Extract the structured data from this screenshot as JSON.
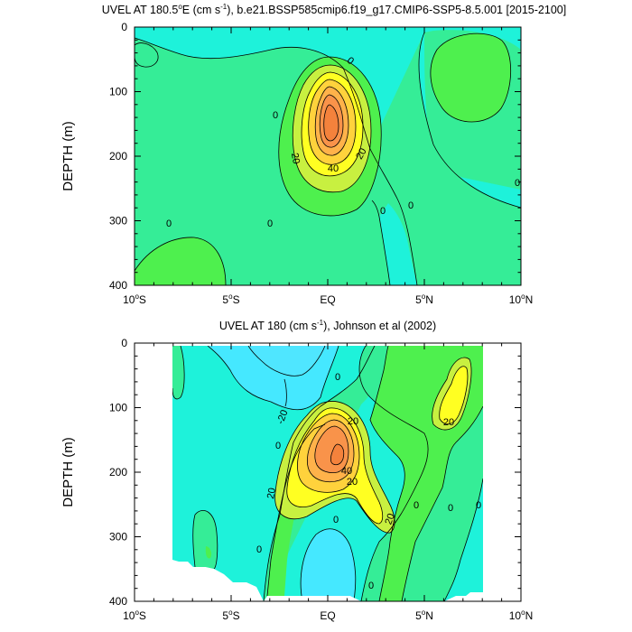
{
  "colors": {
    "lt_m20": "#4fe6ff",
    "m20_m10": "#45e8ff",
    "m10_0": "#1ef2da",
    "c0_10": "#35ed97",
    "c10_20": "#4ef04e",
    "c20_30": "#c8f040",
    "c30_40": "#ffff22",
    "c40_50": "#ffd23c",
    "c50_60": "#ffb24a",
    "c60_70": "#f9934a",
    "c70_80": "#f4823c",
    "contour": "#000000",
    "axis": "#000000",
    "background": "#ffffff"
  },
  "chart_data": [
    {
      "type": "contour",
      "title_main": "UVEL AT 180.5",
      "title_sup": "o",
      "title_mid": "E (cm s",
      "title_sup2": "-1",
      "title_end": "), b.e21.BSSP585cmip6.f19_g17.CMIP6-SSP5-8.5.001 [2015-2100]",
      "ylabel": "DEPTH (m)",
      "x_ticks": [
        "10",
        "5",
        "EQ",
        "5",
        "10"
      ],
      "x_tick_suffix": [
        "S",
        "S",
        "",
        "N",
        "N"
      ],
      "x_tick_deg": [
        "o",
        "o",
        "",
        "o",
        "o"
      ],
      "x_range": [
        -10,
        10
      ],
      "y_ticks": [
        "0",
        "100",
        "200",
        "300",
        "400"
      ],
      "y_range": [
        0,
        400
      ],
      "y_reversed": true,
      "contour_interval": 10,
      "contour_labels": [
        "0",
        "0",
        "0",
        "0",
        "0",
        "0",
        "0",
        "20",
        "20",
        "40"
      ],
      "jet_core": {
        "lon": 0,
        "depth": 150,
        "max_speed": 70
      }
    },
    {
      "type": "contour",
      "title_main": "UVEL AT 180 (cm s",
      "title_sup": "-1",
      "title_end": "), Johnson et al (2002)",
      "ylabel": "DEPTH (m)",
      "x_ticks": [
        "10",
        "5",
        "EQ",
        "5",
        "10"
      ],
      "x_tick_suffix": [
        "S",
        "S",
        "",
        "N",
        "N"
      ],
      "x_tick_deg": [
        "o",
        "o",
        "",
        "o",
        "o"
      ],
      "x_range": [
        -10,
        10
      ],
      "y_ticks": [
        "0",
        "100",
        "200",
        "300",
        "400"
      ],
      "y_range": [
        0,
        400
      ],
      "y_reversed": true,
      "data_extent_lon": [
        -8,
        8
      ],
      "contour_interval": 10,
      "contour_labels": [
        "-20",
        "0",
        "0",
        "0",
        "0",
        "0",
        "0",
        "0",
        "0",
        "20",
        "20",
        "20",
        "20",
        "20",
        "40"
      ],
      "jet_core": {
        "lon": 0.5,
        "depth": 165,
        "max_speed": 80
      }
    }
  ]
}
